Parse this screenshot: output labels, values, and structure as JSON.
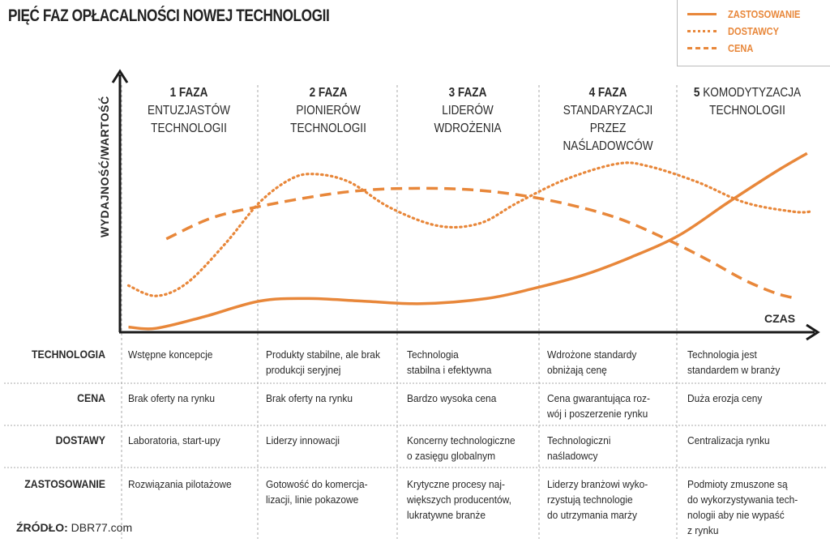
{
  "title": "PIĘĆ FAZ OPŁACALNOŚCI NOWEJ TECHNOLOGII",
  "colors": {
    "accent": "#e8873a",
    "text": "#2a2a2a",
    "axis": "#1a1a1a",
    "grid": "#aaaaaa"
  },
  "chart_data": {
    "type": "line",
    "xlabel": "CZAS",
    "ylabel": "WYDAJNOŚĆ/WARTOŚĆ",
    "xlim": [
      0,
      100
    ],
    "ylim": [
      0,
      100
    ],
    "legend_position": "top-right",
    "series": [
      {
        "name": "ZASTOSOWANIE",
        "style": "solid",
        "x": [
          1,
          5,
          12,
          20,
          27,
          35,
          43.5,
          53,
          60,
          67,
          74,
          81,
          88,
          95,
          99.5
        ],
        "y": [
          2,
          1.5,
          6,
          12,
          13,
          12,
          11,
          13,
          17,
          22,
          29,
          37.5,
          50,
          62,
          69
        ]
      },
      {
        "name": "DOSTAWCY",
        "style": "dotted",
        "x": [
          1,
          5,
          9.5,
          15,
          20,
          24.5,
          28,
          33,
          39,
          46,
          52,
          57.5,
          64.5,
          72,
          76.5,
          83.5,
          90.5,
          97.5,
          100
        ],
        "y": [
          18,
          14,
          19,
          34,
          50,
          59,
          61,
          58,
          48,
          41,
          42,
          50,
          59,
          65,
          64,
          58,
          50,
          46.5,
          46.5
        ]
      },
      {
        "name": "CENA",
        "style": "dashed",
        "x": [
          6.5,
          13,
          20,
          29.5,
          36.5,
          43.5,
          50.5,
          57.5,
          64.5,
          72,
          79,
          85,
          90.5,
          95,
          98
        ],
        "y": [
          36,
          44,
          48.5,
          53,
          55,
          55.5,
          55,
          53,
          49.5,
          44,
          36,
          28,
          20,
          15,
          13
        ]
      }
    ]
  },
  "phases": [
    {
      "num": "1 FAZA",
      "name": [
        "ENTUZJASTÓW",
        "TECHNOLOGII"
      ]
    },
    {
      "num": "2 FAZA",
      "name": [
        "PIONIERÓW",
        "TECHNOLOGII"
      ]
    },
    {
      "num": "3 FAZA",
      "name": [
        "LIDERÓW",
        "WDROŻENIA"
      ]
    },
    {
      "num": "4 FAZA",
      "name": [
        "STANDARYZACJI",
        "PRZEZ",
        "NAŚLADOWCÓW"
      ]
    },
    {
      "num": "5",
      "name": [
        "KOMODYTYZACJA",
        "TECHNOLOGII"
      ]
    }
  ],
  "table": {
    "rows": [
      {
        "label": "TECHNOLOGIA",
        "cells": [
          [
            "Wstępne koncepcje"
          ],
          [
            "Produkty stabilne, ale brak",
            "produkcji seryjnej"
          ],
          [
            "Technologia",
            "stabilna i efektywna"
          ],
          [
            "Wdrożone standardy",
            "obniżają cenę"
          ],
          [
            "Technologia jest",
            "standardem w branży"
          ]
        ]
      },
      {
        "label": "CENA",
        "cells": [
          [
            "Brak oferty na rynku"
          ],
          [
            "Brak oferty na rynku"
          ],
          [
            "Bardzo wysoka cena"
          ],
          [
            "Cena gwarantująca roz-",
            "wój i poszerzenie rynku"
          ],
          [
            "Duża erozja ceny"
          ]
        ]
      },
      {
        "label": "DOSTAWY",
        "cells": [
          [
            "Laboratoria, start-upy"
          ],
          [
            "Liderzy innowacji"
          ],
          [
            "Koncerny technologiczne",
            "o zasięgu globalnym"
          ],
          [
            "Technologiczni",
            "naśladowcy"
          ],
          [
            "Centralizacja rynku"
          ]
        ]
      },
      {
        "label": "ZASTOSOWANIE",
        "cells": [
          [
            "Rozwiązania pilotażowe"
          ],
          [
            "Gotowość do komercja-",
            "lizacji, linie pokazowe"
          ],
          [
            "Krytyczne procesy naj-",
            "większych producentów,",
            "lukratywne branże"
          ],
          [
            "Liderzy branżowi wyko-",
            "rzystują technologie",
            "do utrzymania marży"
          ],
          [
            "Podmioty zmuszone są",
            "do wykorzystywania tech-",
            "nologii aby nie wypaść",
            "z rynku"
          ]
        ]
      }
    ]
  },
  "source": {
    "label": "ŹRÓDŁO:",
    "value": "DBR77.com"
  }
}
